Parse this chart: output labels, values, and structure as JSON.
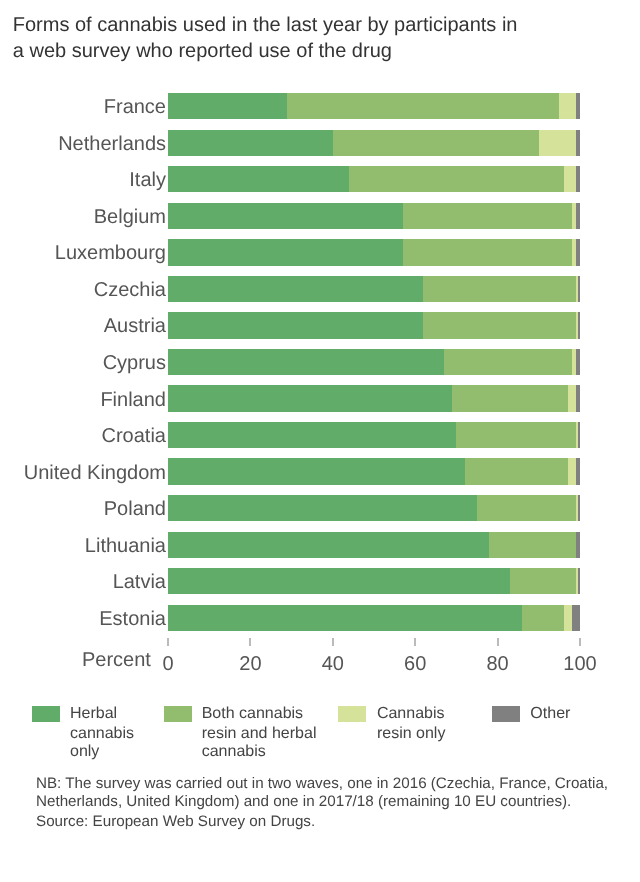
{
  "chart_data": {
    "type": "bar",
    "orientation": "horizontal",
    "stacked": true,
    "title": "Forms of cannabis used in the last year by participants in a web survey who reported use of the drug",
    "xlabel": "Percent",
    "categories": [
      "France",
      "Netherlands",
      "Italy",
      "Belgium",
      "Luxembourg",
      "Czechia",
      "Austria",
      "Cyprus",
      "Finland",
      "Croatia",
      "United Kingdom",
      "Poland",
      "Lithuania",
      "Latvia",
      "Estonia"
    ],
    "series": [
      {
        "name": "Herbal cannabis only",
        "color": "#62ac6a",
        "values": [
          29,
          40,
          44,
          57,
          57,
          62,
          62,
          67,
          69,
          70,
          72,
          75,
          78,
          83,
          86
        ]
      },
      {
        "name": "Both cannabis resin and herbal cannabis",
        "color": "#92bd6f",
        "values": [
          66,
          50,
          52,
          41,
          41,
          37,
          37,
          31,
          28,
          29,
          25,
          24,
          21,
          16,
          10
        ]
      },
      {
        "name": "Cannabis resin only",
        "color": "#d4e29a",
        "values": [
          4,
          9,
          3,
          1,
          1,
          0.5,
          0.5,
          1,
          2,
          0.5,
          2,
          0.5,
          0,
          0.5,
          2
        ]
      },
      {
        "name": "Other",
        "color": "#808080",
        "values": [
          1,
          1,
          1,
          1,
          1,
          0.5,
          0.5,
          1,
          1,
          0.5,
          1,
          0.5,
          1,
          0.5,
          2
        ]
      }
    ],
    "xlim": [
      0,
      100
    ],
    "xticks": [
      0,
      20,
      40,
      60,
      80,
      100
    ],
    "grid": false,
    "legend": "bottom",
    "annotations": [
      "NB: The survey was carried out in two waves, one in 2016 (Czechia, France, Croatia, Netherlands, United Kingdom) and one in 2017/18 (remaining 10 EU countries).",
      "Source: European Web Survey on Drugs."
    ]
  }
}
